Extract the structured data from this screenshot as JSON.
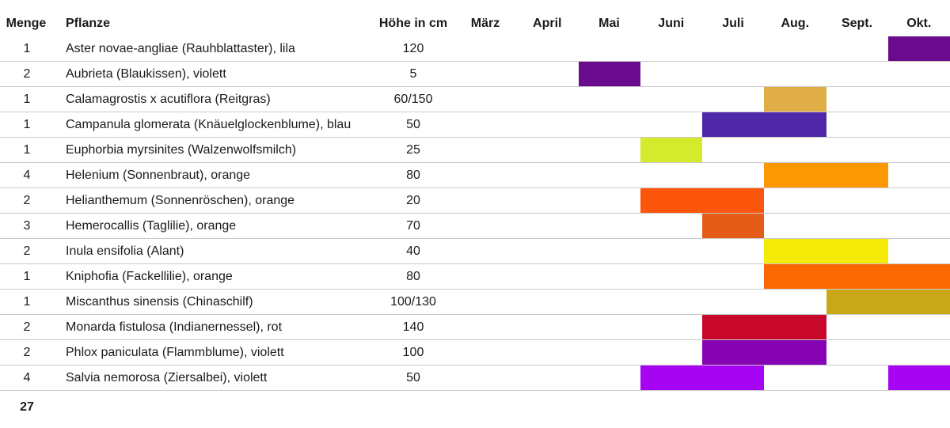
{
  "header": {
    "menge": "Menge",
    "pflanze": "Pflanze",
    "hoehe": "Höhe in cm"
  },
  "months": [
    "März",
    "April",
    "Mai",
    "Juni",
    "Juli",
    "Aug.",
    "Sept.",
    "Okt."
  ],
  "rows": [
    {
      "menge": "1",
      "pflanze": "Aster novae-angliae (Rauhblattaster), lila",
      "hoehe": "120",
      "bloom_start_month": 7,
      "bloom_end_month": 8,
      "color": "#6a0a8c"
    },
    {
      "menge": "2",
      "pflanze": "Aubrieta (Blaukissen), violett",
      "hoehe": "5",
      "bloom_start_month": 2,
      "bloom_end_month": 3,
      "color": "#6a0a8c"
    },
    {
      "menge": "1",
      "pflanze": "Calamagrostis x acutiflora (Reitgras)",
      "hoehe": "60/150",
      "bloom_start_month": 5,
      "bloom_end_month": 6,
      "color": "#e0ae46"
    },
    {
      "menge": "1",
      "pflanze": "Campanula glomerata (Knäuelglockenblume), blau",
      "hoehe": "50",
      "bloom_start_month": 4,
      "bloom_end_month": 6,
      "color": "#4e28a8"
    },
    {
      "menge": "1",
      "pflanze": "Euphorbia myrsinites (Walzenwolfsmilch)",
      "hoehe": "25",
      "bloom_start_month": 3,
      "bloom_end_month": 4,
      "color": "#d4ea2c"
    },
    {
      "menge": "4",
      "pflanze": "Helenium (Sonnenbraut), orange",
      "hoehe": "80",
      "bloom_start_month": 5,
      "bloom_end_month": 7,
      "color": "#fc9804"
    },
    {
      "menge": "2",
      "pflanze": "Helianthemum (Sonnenröschen), orange",
      "hoehe": "20",
      "bloom_start_month": 3,
      "bloom_end_month": 5,
      "color": "#fc560c"
    },
    {
      "menge": "3",
      "pflanze": "Hemerocallis (Taglilie), orange",
      "hoehe": "70",
      "bloom_start_month": 4,
      "bloom_end_month": 5,
      "color": "#e45c18"
    },
    {
      "menge": "2",
      "pflanze": "Inula ensifolia (Alant)",
      "hoehe": "40",
      "bloom_start_month": 5,
      "bloom_end_month": 7,
      "color": "#f4ec08"
    },
    {
      "menge": "1",
      "pflanze": "Kniphofia (Fackellilie), orange",
      "hoehe": "80",
      "bloom_start_month": 5,
      "bloom_end_month": 8,
      "color": "#fc6804"
    },
    {
      "menge": "1",
      "pflanze": "Miscanthus sinensis (Chinaschilf)",
      "hoehe": "100/130",
      "bloom_start_month": 6,
      "bloom_end_month": 8,
      "color": "#c8a818"
    },
    {
      "menge": "2",
      "pflanze": "Monarda fistulosa (Indianernessel), rot",
      "hoehe": "140",
      "bloom_start_month": 4,
      "bloom_end_month": 6,
      "color": "#c8082a"
    },
    {
      "menge": "2",
      "pflanze": "Phlox paniculata (Flammblume), violett",
      "hoehe": "100",
      "bloom_start_month": 4,
      "bloom_end_month": 6,
      "color": "#8604b4"
    },
    {
      "menge": "4",
      "pflanze": "Salvia nemorosa (Ziersalbei), violett",
      "hoehe": "50",
      "bloom_start_month": 3,
      "bloom_end_month": 5,
      "bloom_second_start_month": 7,
      "bloom_second_end_month": 8,
      "color": "#a804f4"
    }
  ],
  "total": "27"
}
